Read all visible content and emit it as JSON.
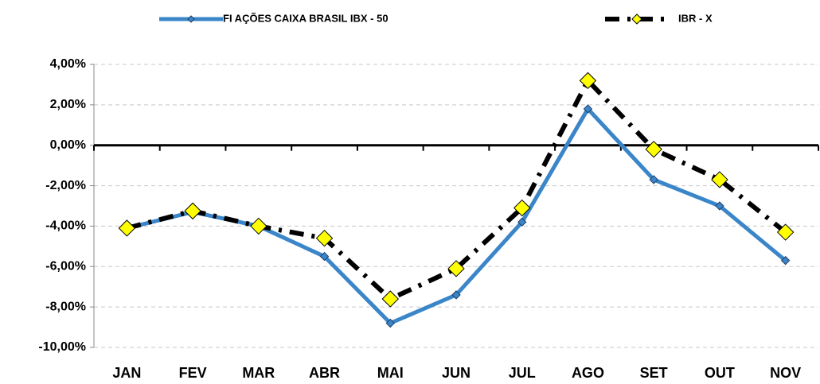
{
  "chart_data": {
    "type": "line",
    "categories": [
      "JAN",
      "FEV",
      "MAR",
      "ABR",
      "MAI",
      "JUN",
      "JUL",
      "AGO",
      "SET",
      "OUT",
      "NOV"
    ],
    "series": [
      {
        "name": "FI AÇÕES CAIXA BRASIL IBX - 50",
        "color": "#3a86c8",
        "marker_color": "#3a86c8",
        "line_style": "solid",
        "values": [
          -4.1,
          -3.3,
          -4.0,
          -5.5,
          -8.8,
          -7.4,
          -3.8,
          1.8,
          -1.7,
          -3.0,
          -5.7
        ]
      },
      {
        "name": "IBR - X",
        "color": "#000000",
        "marker_color": "#ffff00",
        "line_style": "dashdot",
        "values": [
          -4.1,
          -3.25,
          -4.0,
          -4.6,
          -7.6,
          -6.1,
          -3.1,
          3.2,
          -0.2,
          -1.7,
          -4.3
        ]
      }
    ],
    "ylim": [
      -10,
      4
    ],
    "yticks": [
      {
        "value": -10,
        "label": "-10,00%"
      },
      {
        "value": -8,
        "label": "-8,00%"
      },
      {
        "value": -6,
        "label": "-6,00%"
      },
      {
        "value": -4,
        "label": "-4,00%"
      },
      {
        "value": -2,
        "label": "-2,00%"
      },
      {
        "value": 0,
        "label": "0,00%"
      },
      {
        "value": 2,
        "label": "2,00%"
      },
      {
        "value": 4,
        "label": "4,00%"
      }
    ],
    "grid": true,
    "legend": "top"
  }
}
